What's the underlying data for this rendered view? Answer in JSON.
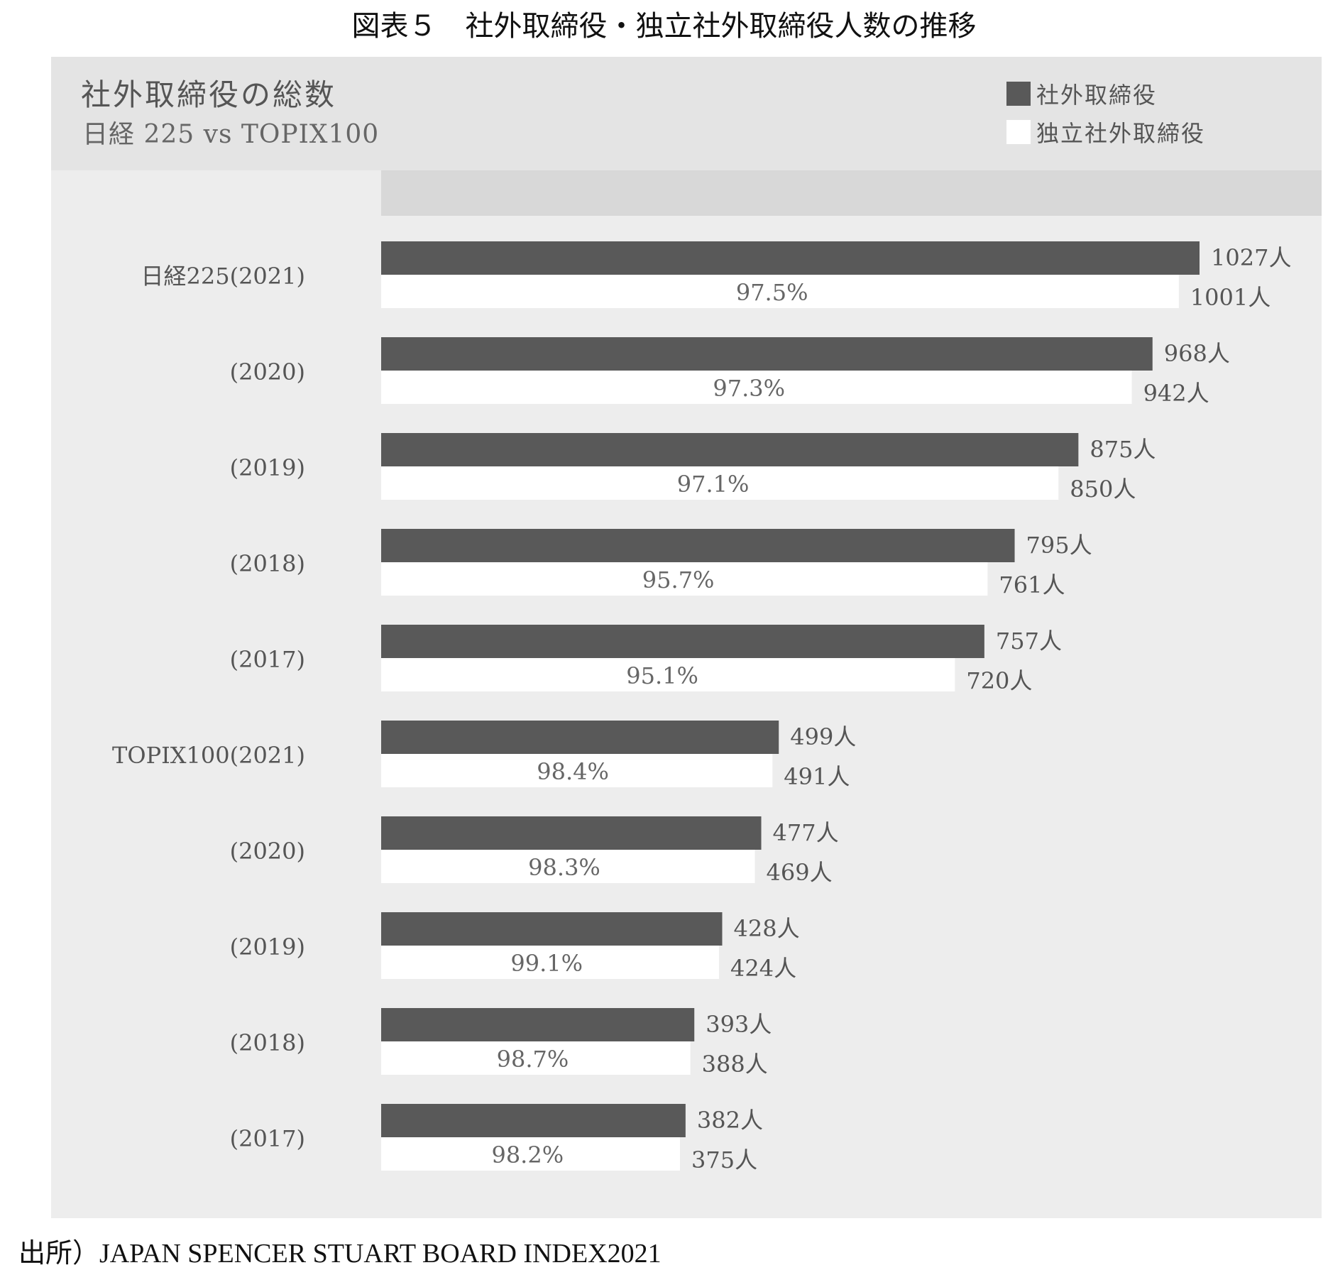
{
  "figure_title": "図表５　社外取締役・独立社外取締役人数の推移",
  "source": "出所）JAPAN SPENCER STUART BOARD INDEX2021",
  "colors": {
    "outside": "#595959",
    "independent": "#ffffff",
    "panel": "#ededed"
  },
  "chart_data": {
    "type": "bar",
    "orientation": "horizontal",
    "title": "社外取締役の総数",
    "subtitle": "日経 225 vs TOPIX100",
    "legend": [
      "社外取締役",
      "独立社外取締役"
    ],
    "legend_position": "top-right",
    "grid": false,
    "categories": [
      "日経225(2021)",
      "(2020)",
      "(2019)",
      "(2018)",
      "(2017)",
      "TOPIX100(2021)",
      "(2020)",
      "(2019)",
      "(2018)",
      "(2017)"
    ],
    "series": [
      {
        "name": "社外取締役",
        "values": [
          1027,
          968,
          875,
          795,
          757,
          499,
          477,
          428,
          393,
          382
        ],
        "labels": [
          "1027人",
          "968人",
          "875人",
          "795人",
          "757人",
          "499人",
          "477人",
          "428人",
          "393人",
          "382人"
        ]
      },
      {
        "name": "独立社外取締役",
        "values": [
          1001,
          942,
          850,
          761,
          720,
          491,
          469,
          424,
          388,
          375
        ],
        "labels": [
          "1001人",
          "942人",
          "850人",
          "761人",
          "720人",
          "491人",
          "469人",
          "424人",
          "388人",
          "375人"
        ]
      }
    ],
    "ratios": [
      "97.5%",
      "97.3%",
      "97.1%",
      "95.7%",
      "95.1%",
      "98.4%",
      "98.3%",
      "99.1%",
      "98.7%",
      "98.2%"
    ],
    "xlim": [
      0,
      1027
    ]
  }
}
